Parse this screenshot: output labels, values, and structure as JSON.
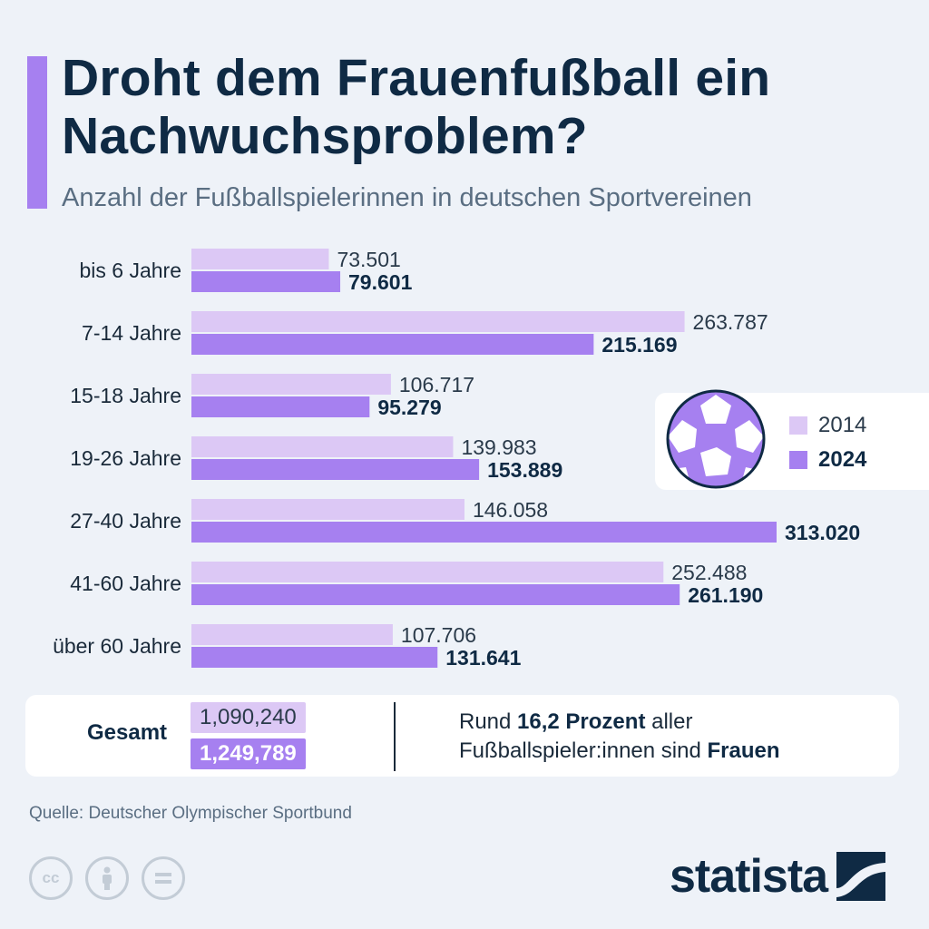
{
  "title": "Droht dem Frauenfußball ein Nachwuchsproblem?",
  "subtitle": "Anzahl der Fußballspielerinnen in deutschen Sportvereinen",
  "colors": {
    "accent": "#a680f0",
    "light": "#dcc8f5",
    "dark_text": "#0f2a44"
  },
  "chart_data": {
    "type": "bar",
    "orientation": "horizontal",
    "categories": [
      "bis 6 Jahre",
      "7-14 Jahre",
      "15-18 Jahre",
      "19-26 Jahre",
      "27-40 Jahre",
      "41-60 Jahre",
      "über 60 Jahre"
    ],
    "series": [
      {
        "name": "2014",
        "values": [
          73501,
          263787,
          106717,
          139983,
          146058,
          252488,
          107706
        ],
        "labels": [
          "73.501",
          "263.787",
          "106.717",
          "139.983",
          "146.058",
          "252.488",
          "107.706"
        ],
        "color": "#dcc8f5"
      },
      {
        "name": "2024",
        "values": [
          79601,
          215169,
          95279,
          153889,
          313020,
          261190,
          131641
        ],
        "labels": [
          "79.601",
          "215.169",
          "95.279",
          "153.889",
          "313.020",
          "261.190",
          "131.641"
        ],
        "color": "#a680f0"
      }
    ],
    "grid": false,
    "legend": "right"
  },
  "legend": {
    "items": [
      {
        "label": "2014",
        "color": "#dcc8f5"
      },
      {
        "label": "2024",
        "color": "#a680f0"
      }
    ]
  },
  "summary": {
    "label": "Gesamt",
    "total_2014": "1,090,240",
    "total_2024": "1,249,789",
    "note_prefix": "Rund ",
    "note_bold": "16,2 Prozent",
    "note_middle": " aller Fußballspieler:innen sind ",
    "note_bold2": "Frauen"
  },
  "source": "Quelle: Deutscher Olympischer Sportbund",
  "license_icons": [
    "cc-icon",
    "attribution-icon",
    "no-derivatives-icon"
  ],
  "brand": "statista"
}
